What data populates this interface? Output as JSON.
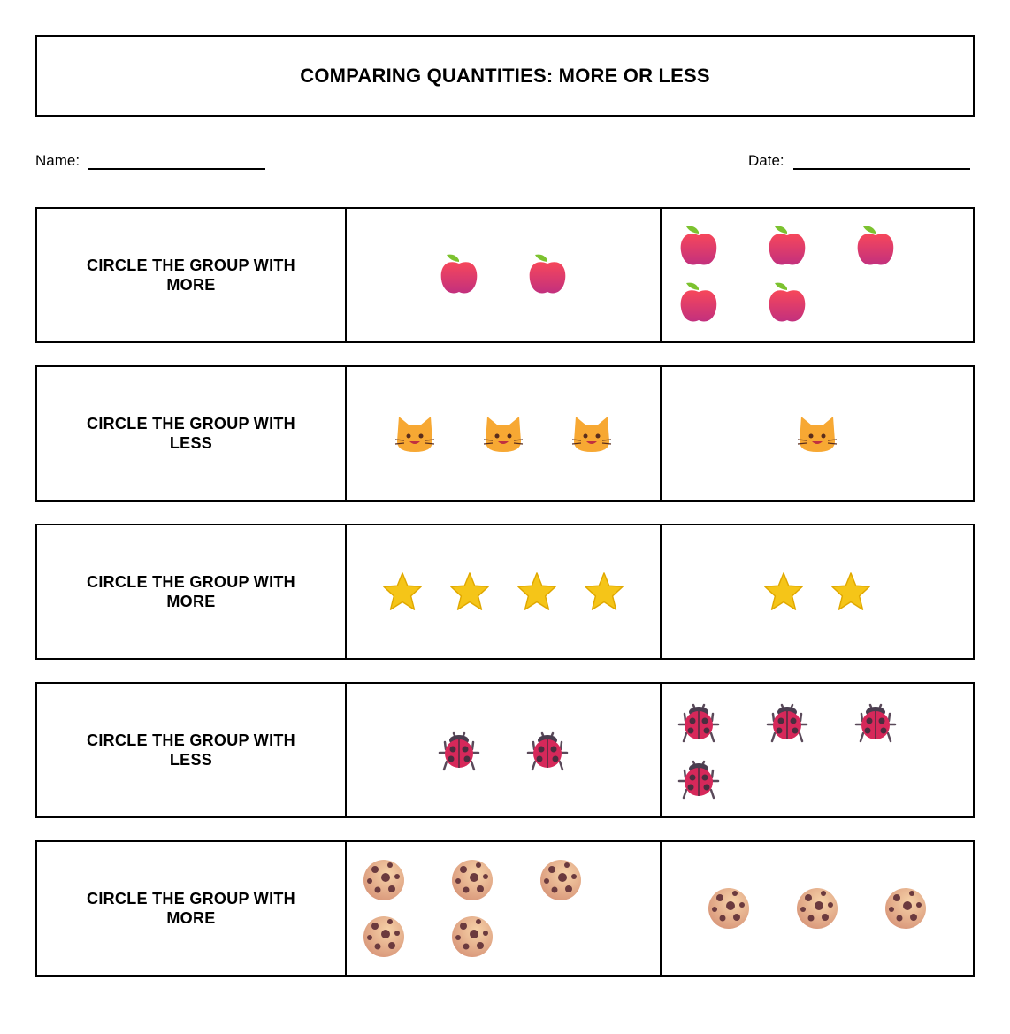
{
  "title": "COMPARING QUANTITIES: MORE OR LESS",
  "name_label": "Name:",
  "date_label": "Date:",
  "rows": [
    {
      "instruction": "CIRCLE THE GROUP WITH MORE",
      "item": "apple-icon",
      "group_a_count": 2,
      "group_b_count": 5
    },
    {
      "instruction": "CIRCLE THE GROUP WITH LESS",
      "item": "cat-face-icon",
      "group_a_count": 3,
      "group_b_count": 1
    },
    {
      "instruction": "CIRCLE THE GROUP WITH MORE",
      "item": "star-icon",
      "group_a_count": 4,
      "group_b_count": 2
    },
    {
      "instruction": "CIRCLE THE GROUP WITH LESS",
      "item": "ladybug-icon",
      "group_a_count": 2,
      "group_b_count": 4
    },
    {
      "instruction": "CIRCLE THE GROUP WITH MORE",
      "item": "cookie-icon",
      "group_a_count": 5,
      "group_b_count": 3
    }
  ],
  "colors": {
    "apple": "#e8384f",
    "leaf": "#7cc22f",
    "cat": "#f7a833",
    "star": "#f5c518",
    "ladybug": "#d6285a",
    "cookie": "#e8b98f",
    "chip": "#6b3a3e"
  }
}
